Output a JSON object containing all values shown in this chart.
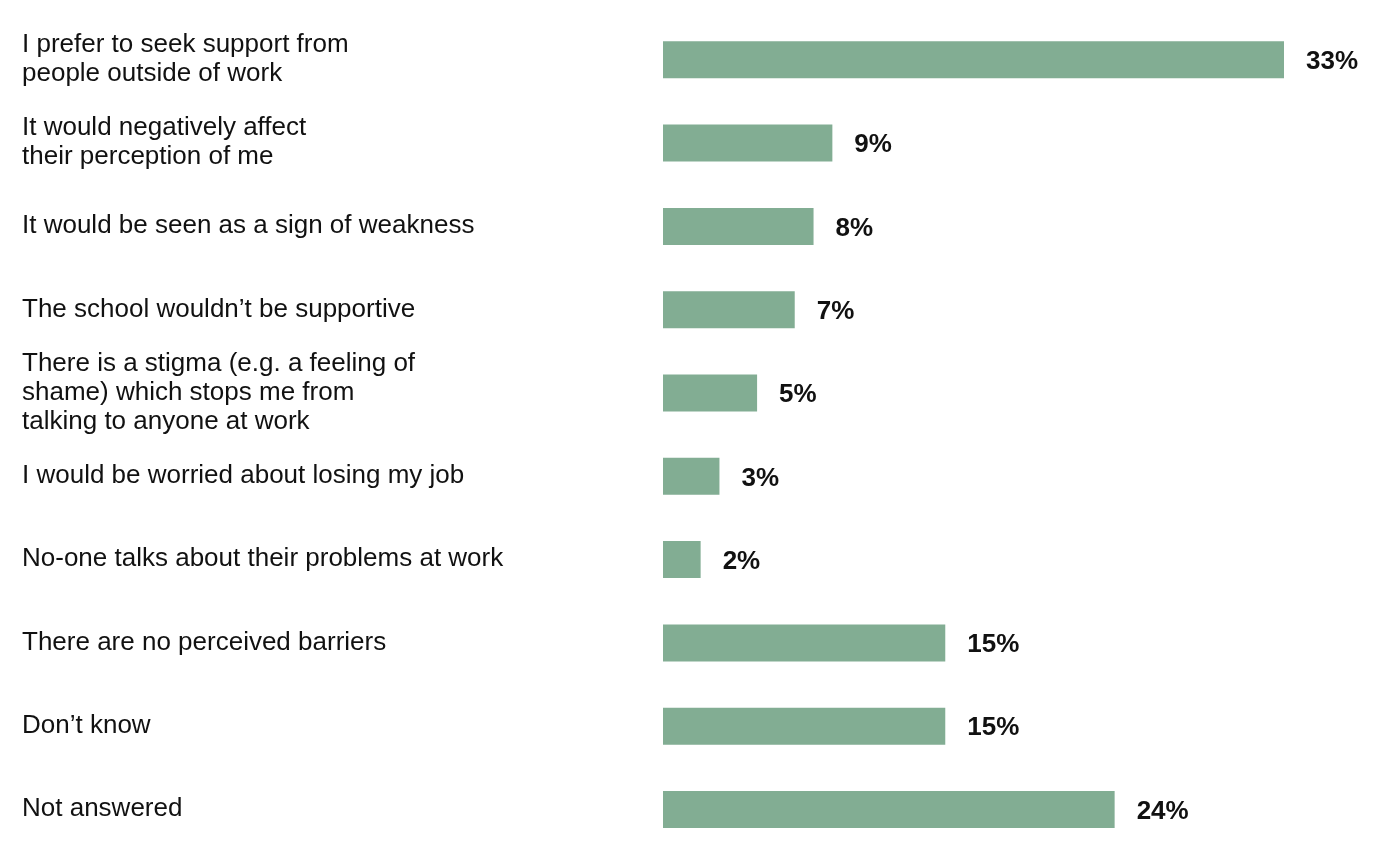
{
  "chart_data": {
    "type": "bar",
    "orientation": "horizontal",
    "categories": [
      "I prefer to seek support from\npeople outside of work",
      "It would negatively affect\ntheir perception of me",
      "It would be seen as a sign of weakness",
      "The school wouldn’t be supportive",
      "There is a stigma (e.g. a feeling of\nshame) which stops me from\ntalking to anyone at work",
      "I would be worried about losing my job",
      "No-one talks about their problems at work",
      "There are no perceived barriers",
      "Don’t know",
      "Not answered"
    ],
    "values": [
      33,
      9,
      8,
      7,
      5,
      3,
      2,
      15,
      15,
      24
    ],
    "value_labels": [
      "33%",
      "9%",
      "8%",
      "7%",
      "5%",
      "3%",
      "2%",
      "15%",
      "15%",
      "24%"
    ],
    "color": "#82ad93"
  }
}
